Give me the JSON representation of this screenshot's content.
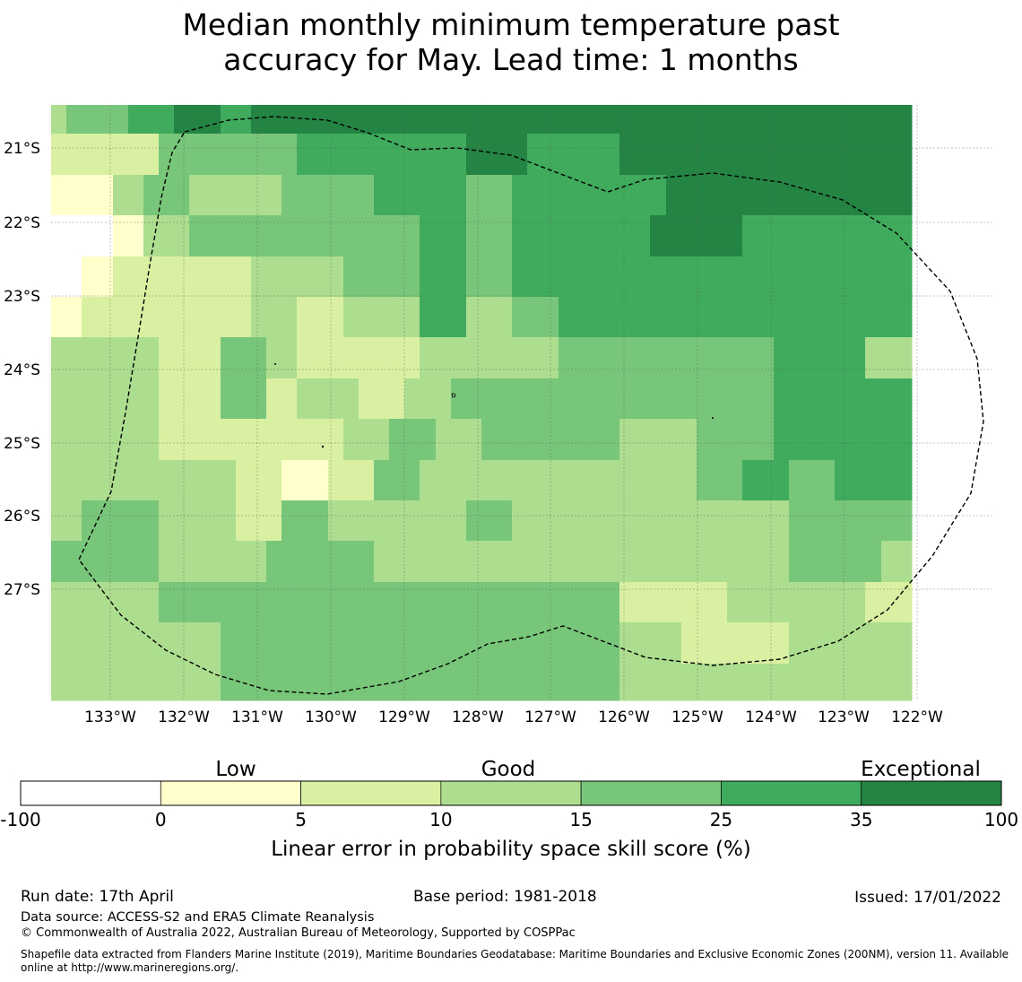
{
  "title_line1": "Median monthly minimum temperature past",
  "title_line2": "accuracy for May. Lead time: 1 months",
  "lon_labels": [
    "133°W",
    "132°W",
    "131°W",
    "130°W",
    "129°W",
    "128°W",
    "127°W",
    "126°W",
    "125°W",
    "124°W",
    "123°W",
    "122°W"
  ],
  "lat_labels": [
    "21°S",
    "22°S",
    "23°S",
    "24°S",
    "25°S",
    "26°S",
    "27°S"
  ],
  "colorbar": {
    "category_labels": [
      "Low",
      "Good",
      "Exceptional"
    ],
    "tick_labels": [
      "-100",
      "0",
      "5",
      "10",
      "15",
      "25",
      "35",
      "100"
    ],
    "colors": [
      "#ffffff",
      "#ffffcc",
      "#d9f0a3",
      "#addd8e",
      "#78c679",
      "#41ab5d",
      "#238443"
    ],
    "axis_label": "Linear error in probability space skill score (%)"
  },
  "grid": [
    [
      3,
      4,
      4,
      4,
      4,
      5,
      5,
      5,
      6,
      6,
      6,
      5,
      5,
      6,
      6,
      6,
      6,
      6,
      6,
      6,
      6,
      6,
      6,
      6,
      6,
      6,
      6,
      6,
      6,
      6,
      6,
      6,
      6,
      6,
      6,
      6,
      6,
      6,
      6,
      6,
      6,
      6,
      6,
      6,
      6,
      6,
      6,
      6,
      6,
      6,
      6,
      6,
      6,
      6,
      6,
      6
    ],
    [
      2,
      2,
      2,
      2,
      2,
      2,
      2,
      4,
      4,
      4,
      4,
      4,
      4,
      4,
      4,
      4,
      5,
      5,
      5,
      5,
      5,
      5,
      5,
      5,
      5,
      5,
      5,
      6,
      6,
      6,
      6,
      5,
      5,
      5,
      5,
      5,
      5,
      6,
      6,
      6,
      6,
      6,
      6,
      6,
      6,
      6,
      6,
      6,
      6,
      6,
      6,
      6,
      6,
      6,
      6,
      6
    ],
    [
      1,
      1,
      1,
      1,
      3,
      3,
      4,
      4,
      4,
      3,
      3,
      3,
      3,
      3,
      3,
      4,
      4,
      4,
      4,
      4,
      4,
      5,
      5,
      5,
      5,
      5,
      5,
      4,
      4,
      4,
      5,
      5,
      5,
      5,
      5,
      5,
      5,
      5,
      5,
      5,
      6,
      6,
      6,
      6,
      6,
      6,
      6,
      6,
      6,
      6,
      6,
      6,
      6,
      6,
      6,
      6
    ],
    [
      0,
      0,
      0,
      0,
      1,
      1,
      3,
      3,
      3,
      4,
      4,
      4,
      4,
      4,
      4,
      4,
      4,
      4,
      4,
      4,
      4,
      4,
      4,
      4,
      5,
      5,
      5,
      4,
      4,
      4,
      5,
      5,
      5,
      5,
      5,
      5,
      5,
      5,
      5,
      6,
      6,
      6,
      6,
      6,
      6,
      5,
      5,
      5,
      5,
      5,
      5,
      5,
      5,
      5,
      5,
      5
    ],
    [
      0,
      0,
      1,
      1,
      2,
      2,
      2,
      2,
      2,
      2,
      2,
      2,
      2,
      3,
      3,
      3,
      3,
      3,
      3,
      4,
      4,
      4,
      4,
      4,
      5,
      5,
      5,
      4,
      4,
      4,
      5,
      5,
      5,
      5,
      5,
      5,
      5,
      5,
      5,
      5,
      5,
      5,
      5,
      5,
      5,
      5,
      5,
      5,
      5,
      5,
      5,
      5,
      5,
      5,
      5,
      5
    ],
    [
      1,
      1,
      2,
      2,
      2,
      2,
      2,
      2,
      2,
      2,
      2,
      2,
      2,
      3,
      3,
      3,
      2,
      2,
      2,
      3,
      3,
      3,
      3,
      3,
      5,
      5,
      5,
      3,
      3,
      3,
      4,
      4,
      4,
      5,
      5,
      5,
      5,
      5,
      5,
      5,
      5,
      5,
      5,
      5,
      5,
      5,
      5,
      5,
      5,
      5,
      5,
      5,
      5,
      5,
      5,
      5
    ],
    [
      3,
      3,
      3,
      3,
      3,
      3,
      3,
      2,
      2,
      2,
      2,
      4,
      4,
      4,
      3,
      3,
      2,
      2,
      2,
      2,
      2,
      2,
      2,
      2,
      3,
      3,
      3,
      3,
      3,
      3,
      3,
      3,
      3,
      4,
      4,
      4,
      4,
      4,
      4,
      4,
      4,
      4,
      4,
      4,
      4,
      4,
      4,
      5,
      5,
      5,
      5,
      5,
      5,
      3,
      3,
      3
    ],
    [
      3,
      3,
      3,
      3,
      3,
      3,
      3,
      2,
      2,
      2,
      2,
      4,
      4,
      4,
      2,
      2,
      3,
      3,
      3,
      3,
      2,
      2,
      2,
      3,
      3,
      3,
      4,
      4,
      4,
      4,
      4,
      4,
      4,
      4,
      4,
      4,
      4,
      4,
      4,
      4,
      4,
      4,
      4,
      4,
      4,
      4,
      4,
      5,
      5,
      5,
      5,
      5,
      5,
      5,
      5,
      5
    ],
    [
      3,
      3,
      3,
      3,
      3,
      3,
      3,
      2,
      2,
      2,
      2,
      2,
      2,
      2,
      2,
      2,
      2,
      2,
      2,
      3,
      3,
      3,
      4,
      4,
      4,
      3,
      3,
      3,
      4,
      4,
      4,
      4,
      4,
      4,
      4,
      4,
      4,
      3,
      3,
      3,
      3,
      3,
      4,
      4,
      4,
      4,
      4,
      5,
      5,
      5,
      5,
      5,
      5,
      5,
      5,
      5
    ],
    [
      3,
      3,
      3,
      3,
      3,
      3,
      3,
      3,
      3,
      3,
      3,
      3,
      2,
      2,
      2,
      1,
      1,
      1,
      2,
      2,
      2,
      4,
      4,
      4,
      3,
      3,
      3,
      3,
      3,
      3,
      3,
      3,
      3,
      3,
      3,
      3,
      3,
      3,
      3,
      3,
      3,
      3,
      4,
      4,
      4,
      5,
      5,
      5,
      4,
      4,
      4,
      5,
      5,
      5,
      5,
      5
    ],
    [
      3,
      3,
      4,
      4,
      4,
      4,
      4,
      3,
      3,
      3,
      3,
      3,
      2,
      2,
      2,
      4,
      4,
      4,
      3,
      3,
      3,
      3,
      3,
      3,
      3,
      3,
      3,
      4,
      4,
      4,
      3,
      3,
      3,
      3,
      3,
      3,
      3,
      3,
      3,
      3,
      3,
      3,
      3,
      3,
      3,
      3,
      3,
      3,
      4,
      4,
      4,
      4,
      4,
      4,
      4,
      4
    ],
    [
      4,
      4,
      4,
      4,
      4,
      4,
      4,
      3,
      3,
      3,
      3,
      3,
      3,
      3,
      4,
      4,
      4,
      4,
      4,
      4,
      4,
      3,
      3,
      3,
      3,
      3,
      3,
      3,
      3,
      3,
      3,
      3,
      3,
      3,
      3,
      3,
      3,
      3,
      3,
      3,
      3,
      3,
      3,
      3,
      3,
      3,
      3,
      3,
      4,
      4,
      4,
      4,
      4,
      4,
      3,
      3
    ],
    [
      3,
      3,
      3,
      3,
      3,
      3,
      3,
      4,
      4,
      4,
      4,
      4,
      4,
      4,
      4,
      4,
      4,
      4,
      4,
      4,
      4,
      4,
      4,
      4,
      4,
      4,
      4,
      4,
      4,
      4,
      4,
      4,
      4,
      4,
      4,
      4,
      4,
      2,
      2,
      2,
      2,
      2,
      2,
      2,
      3,
      3,
      3,
      3,
      3,
      3,
      3,
      3,
      3,
      2,
      2,
      2
    ],
    [
      3,
      3,
      3,
      3,
      3,
      3,
      3,
      3,
      3,
      3,
      3,
      4,
      4,
      4,
      4,
      4,
      4,
      4,
      4,
      4,
      4,
      4,
      4,
      4,
      4,
      4,
      4,
      4,
      4,
      4,
      4,
      4,
      4,
      4,
      4,
      4,
      4,
      3,
      3,
      3,
      3,
      2,
      2,
      2,
      2,
      2,
      2,
      2,
      3,
      3,
      3,
      3,
      3,
      3,
      3,
      3
    ],
    [
      3,
      3,
      3,
      3,
      3,
      3,
      3,
      3,
      3,
      3,
      3,
      4,
      4,
      4,
      4,
      4,
      4,
      4,
      4,
      4,
      4,
      4,
      4,
      4,
      4,
      4,
      4,
      4,
      4,
      4,
      4,
      4,
      4,
      4,
      4,
      4,
      4,
      3,
      3,
      3,
      3,
      3,
      3,
      3,
      3,
      3,
      3,
      3,
      3,
      3,
      3,
      3,
      3,
      3,
      3,
      3
    ],
    [
      3,
      3,
      3,
      3,
      3,
      3,
      3,
      4,
      4,
      4,
      4,
      4,
      4,
      4,
      4,
      4,
      4,
      4,
      3,
      3,
      3,
      3,
      3,
      4,
      4,
      4,
      4,
      4,
      4,
      4,
      4,
      4,
      4,
      4,
      4,
      4,
      4,
      4,
      4,
      4,
      4,
      4,
      4,
      4,
      3,
      3,
      3,
      3,
      3,
      3,
      2,
      2,
      2,
      4,
      4,
      4
    ]
  ],
  "footer": {
    "run_date": "Run date: 17th April",
    "base_period": "Base period: 1981-2018",
    "issued": "Issued: 17/01/2022",
    "data_source": "Data source: ACCESS-S2 and ERA5 Climate Reanalysis",
    "copyright": "© Commonwealth of Australia 2022, Australian Bureau of Meteorology, Supported by COSPPac",
    "shapefile_line1": "Shapefile data extracted from Flanders Marine Institute (2019), Maritime Boundaries Geodatabase: Maritime Boundaries and Exclusive Economic Zones (200NM), version 11. Available",
    "shapefile_line2": "online at http://www.marineregions.org/."
  }
}
